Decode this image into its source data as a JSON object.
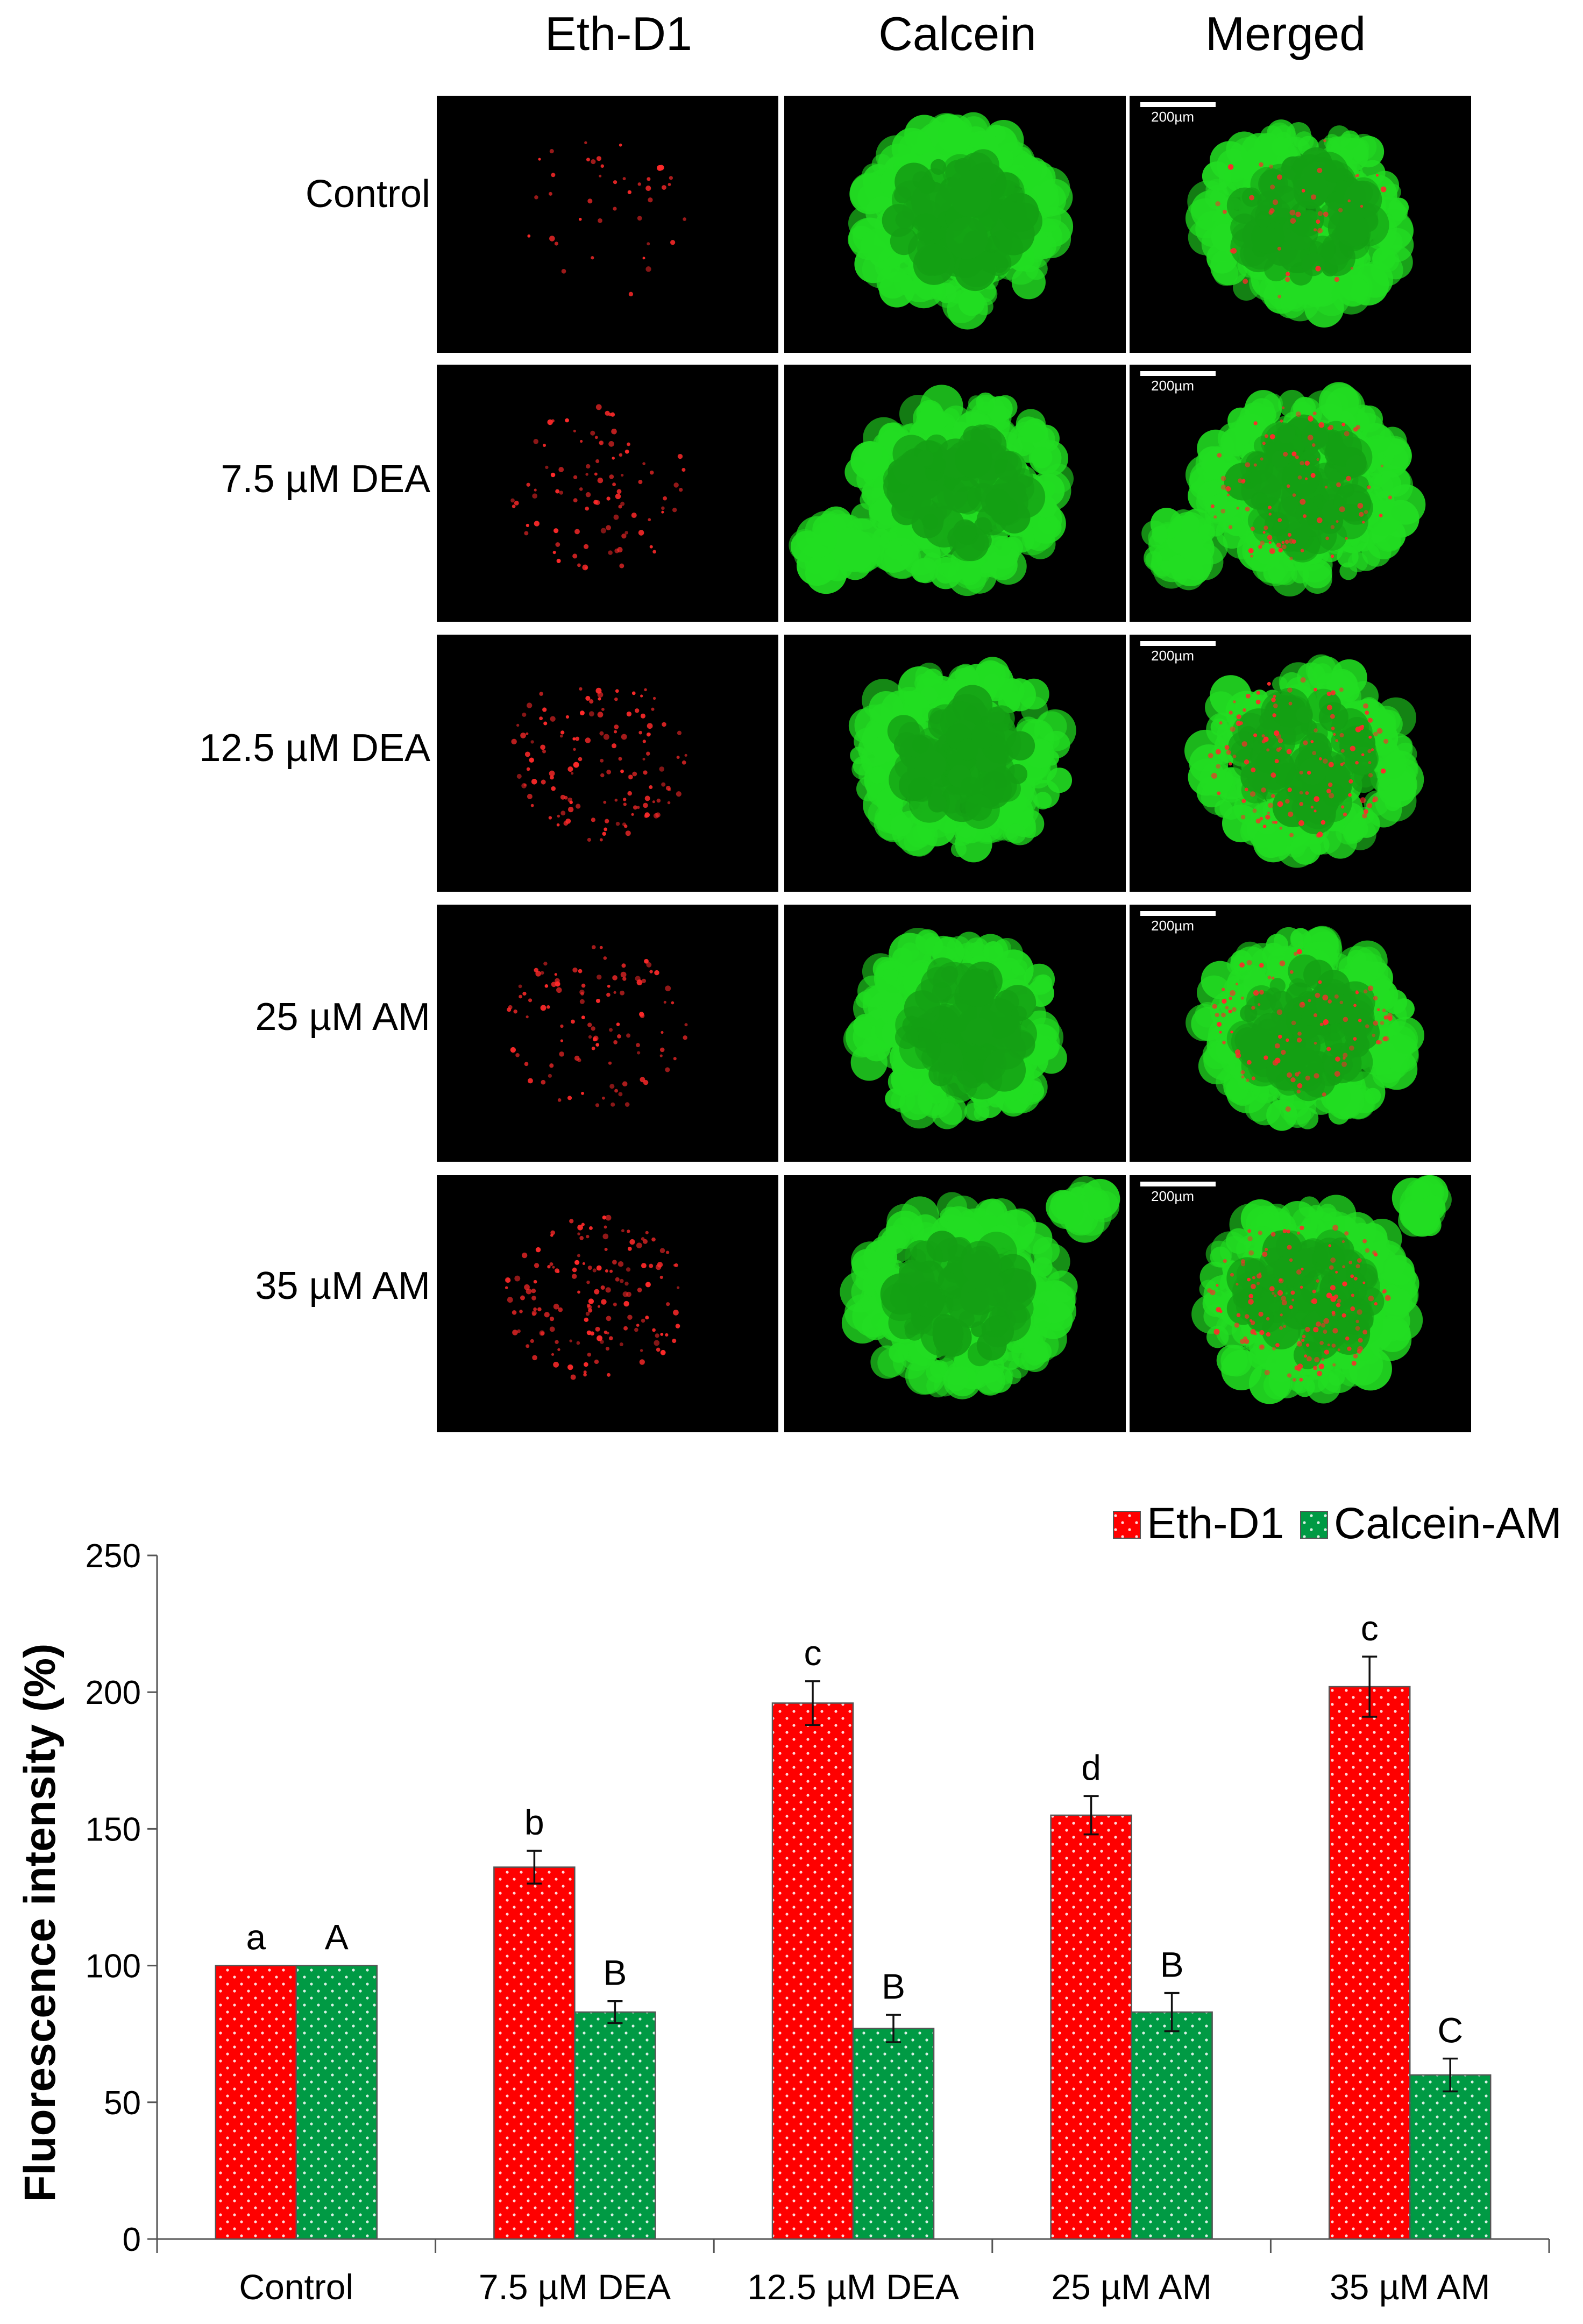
{
  "figure": {
    "columns": [
      "Eth-D1",
      "Calcein",
      "Merged"
    ],
    "rows": [
      "Control",
      "7.5 µM DEA",
      "12.5 µM DEA",
      "25 µM AM",
      "35 µM AM"
    ],
    "scale_bar": "200µm"
  },
  "chart_data": {
    "type": "bar",
    "title": "",
    "xlabel": "",
    "ylabel": "Fluorescence intensity (%)",
    "ylim": [
      0,
      250
    ],
    "yticks": [
      0,
      50,
      100,
      150,
      200,
      250
    ],
    "categories": [
      "Control",
      "7.5 µM DEA",
      "12.5 µM DEA",
      "25 µM AM",
      "35 µM AM"
    ],
    "legend_position": "top-right",
    "series": [
      {
        "name": "Eth-D1",
        "color": "#ff0000",
        "values": [
          100,
          136,
          196,
          155,
          202
        ],
        "errors": [
          0,
          6,
          8,
          7,
          11
        ],
        "labels": [
          "a",
          "b",
          "c",
          "d",
          "c"
        ]
      },
      {
        "name": "Calcein-AM",
        "color": "#009a44",
        "values": [
          100,
          83,
          77,
          83,
          60
        ],
        "errors": [
          0,
          4,
          5,
          7,
          6
        ],
        "labels": [
          "A",
          "B",
          "B",
          "B",
          "C"
        ]
      }
    ]
  }
}
